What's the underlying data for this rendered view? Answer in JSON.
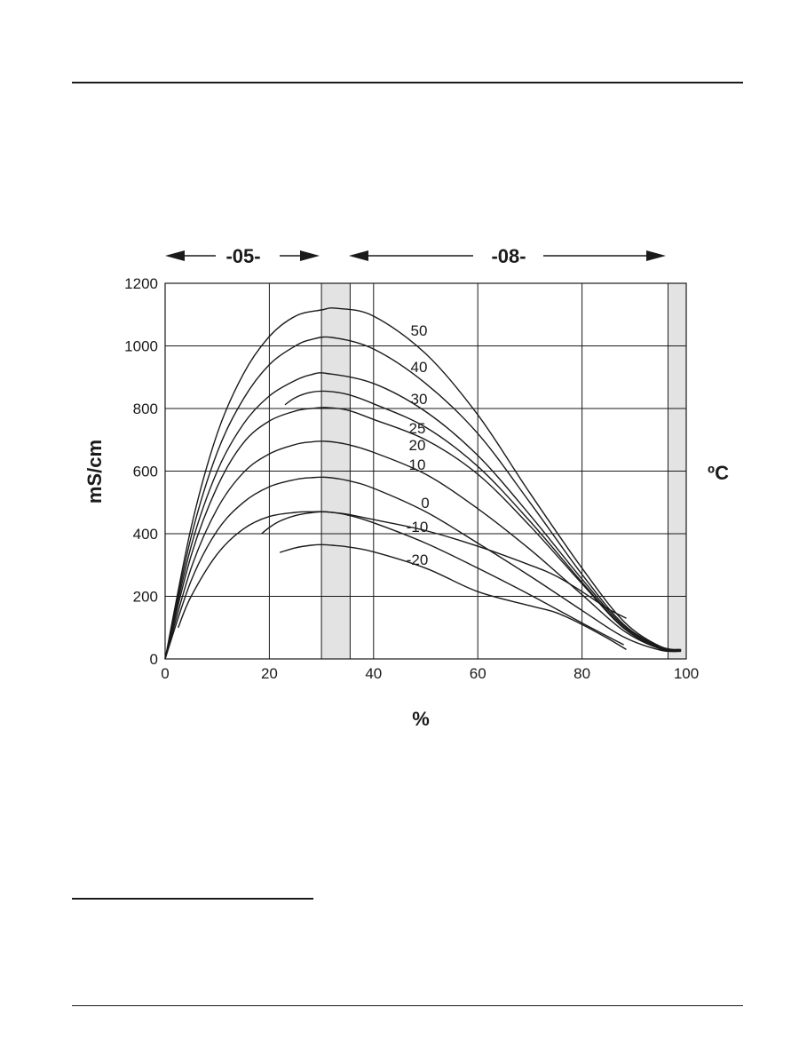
{
  "chart_data": {
    "type": "line",
    "title": "",
    "xlabel": "%",
    "ylabel": "mS/cm",
    "right_label": "ºC",
    "xlim": [
      0,
      100
    ],
    "ylim": [
      0,
      1200
    ],
    "x_ticks": [
      "0",
      "20",
      "40",
      "60",
      "80",
      "100"
    ],
    "y_ticks": [
      "0",
      "200",
      "400",
      "600",
      "800",
      "1000",
      "1200"
    ],
    "grid": true,
    "shaded_ranges": [
      [
        30,
        35.5
      ],
      [
        96.5,
        100
      ]
    ],
    "range_annotations": [
      {
        "label": "-05-",
        "from": 0,
        "to": 30
      },
      {
        "label": "-08-",
        "from": 35,
        "to": 96
      }
    ],
    "series": [
      {
        "name": "50",
        "x": [
          0,
          5,
          10,
          15,
          20,
          25,
          30,
          33,
          40,
          50,
          60,
          70,
          80,
          88,
          95,
          99
        ],
        "y": [
          0,
          420,
          720,
          910,
          1030,
          1095,
          1115,
          1120,
          1095,
          975,
          780,
          530,
          290,
          120,
          40,
          30
        ]
      },
      {
        "name": "40",
        "x": [
          0,
          5,
          10,
          15,
          20,
          25,
          28,
          32,
          40,
          50,
          60,
          70,
          80,
          88,
          95,
          99
        ],
        "y": [
          0,
          390,
          660,
          830,
          940,
          1000,
          1020,
          1027,
          990,
          880,
          720,
          500,
          270,
          110,
          40,
          28
        ]
      },
      {
        "name": "30",
        "x": [
          0,
          5,
          10,
          15,
          20,
          25,
          28,
          31,
          40,
          50,
          60,
          70,
          80,
          88,
          95,
          99
        ],
        "y": [
          0,
          360,
          600,
          750,
          840,
          890,
          908,
          912,
          880,
          790,
          650,
          460,
          255,
          105,
          38,
          28
        ]
      },
      {
        "name": "25",
        "x": [
          23,
          25,
          28,
          31,
          35,
          40,
          50,
          60,
          70,
          80,
          88,
          95,
          99
        ],
        "y": [
          812,
          835,
          852,
          855,
          845,
          815,
          740,
          615,
          440,
          245,
          100,
          35,
          27
        ]
      },
      {
        "name": "20",
        "x": [
          0,
          5,
          10,
          15,
          20,
          25,
          28,
          31,
          35,
          40,
          50,
          60,
          70,
          80,
          88,
          95,
          99
        ],
        "y": [
          0,
          330,
          550,
          690,
          760,
          792,
          800,
          803,
          795,
          765,
          700,
          590,
          425,
          240,
          98,
          34,
          26
        ]
      },
      {
        "name": "10",
        "x": [
          0,
          5,
          10,
          15,
          20,
          25,
          28,
          31,
          35,
          40,
          50,
          60,
          70,
          80,
          88,
          95,
          99
        ],
        "y": [
          0,
          290,
          480,
          595,
          655,
          685,
          693,
          695,
          685,
          660,
          590,
          480,
          350,
          205,
          90,
          32,
          25
        ]
      },
      {
        "name": "0",
        "x": [
          0,
          5,
          10,
          15,
          20,
          25,
          28,
          31,
          35,
          40,
          50,
          60,
          70,
          80,
          88,
          95,
          99
        ],
        "y": [
          0,
          250,
          410,
          500,
          550,
          573,
          579,
          580,
          570,
          545,
          470,
          370,
          265,
          155,
          70,
          28,
          24
        ]
      },
      {
        "name": "-10",
        "x": [
          2.5,
          5,
          10,
          15,
          20,
          25,
          28,
          31,
          35,
          40,
          50,
          60,
          70,
          80,
          88
        ],
        "y": [
          100,
          200,
          335,
          415,
          455,
          468,
          470,
          470,
          460,
          435,
          370,
          290,
          205,
          115,
          45
        ]
      },
      {
        "name": "-20",
        "x": [
          18.5,
          20,
          22,
          25,
          28,
          30,
          32,
          35,
          40,
          50,
          60,
          70,
          75,
          80,
          85,
          88.5
        ],
        "y": [
          400,
          420,
          440,
          458,
          467,
          470,
          468,
          462,
          445,
          410,
          360,
          300,
          265,
          215,
          160,
          130
        ]
      },
      {
        "name": "",
        "x": [
          22,
          25,
          28,
          30,
          32,
          35,
          40,
          50,
          60,
          70,
          75,
          80,
          85,
          88.5
        ],
        "y": [
          340,
          355,
          363,
          365,
          363,
          358,
          342,
          290,
          215,
          170,
          148,
          110,
          65,
          30
        ]
      }
    ]
  }
}
